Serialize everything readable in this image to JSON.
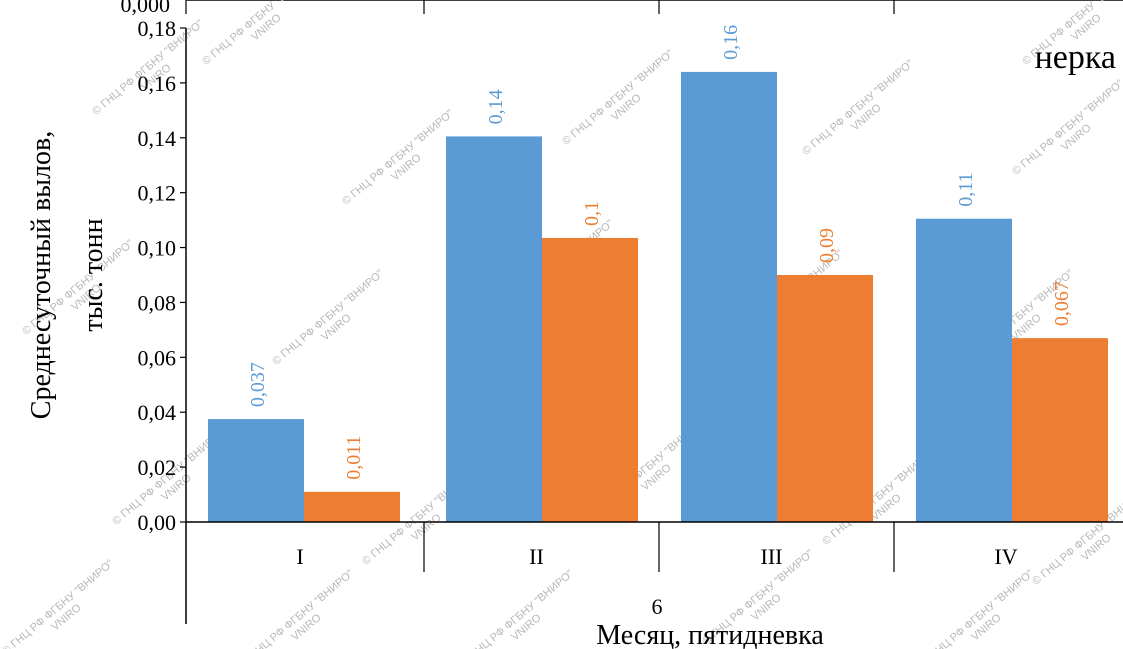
{
  "chart_data": {
    "type": "bar",
    "categories": [
      "I",
      "II",
      "III",
      "IV"
    ],
    "series": [
      {
        "values": [
          0.037,
          0.14,
          0.16,
          0.11
        ],
        "labels": [
          "0,037",
          "0,14",
          "0,16",
          "0,11"
        ],
        "color": "#5b9bd5"
      },
      {
        "values": [
          0.011,
          0.1,
          0.09,
          0.067
        ],
        "labels": [
          "0,011",
          "0,1",
          "0,09",
          "0,067"
        ],
        "color": "#ed7d31"
      }
    ],
    "bar_heights": [
      [
        0.0375,
        0.1405,
        0.164,
        0.1105
      ],
      [
        0.011,
        0.1035,
        0.09,
        0.067
      ]
    ],
    "ylim": [
      0,
      0.18
    ],
    "ytick_labels": [
      "0,00",
      "0,02",
      "0,04",
      "0,06",
      "0,08",
      "0,10",
      "0,12",
      "0,14",
      "0,16",
      "0,18"
    ],
    "ylabel_line1": "Среднесуточный  вылов,",
    "ylabel_line2": "тыс. тонн",
    "xlabel": "Месяц, пятидневка",
    "x_annotation": "6",
    "corner_annotation": "нерка",
    "top_cut_tick": "0,000",
    "watermark_line1": "© ГНЦ РФ ФГБНУ \"ВНИРО\"",
    "watermark_line2": "VNIRO"
  }
}
